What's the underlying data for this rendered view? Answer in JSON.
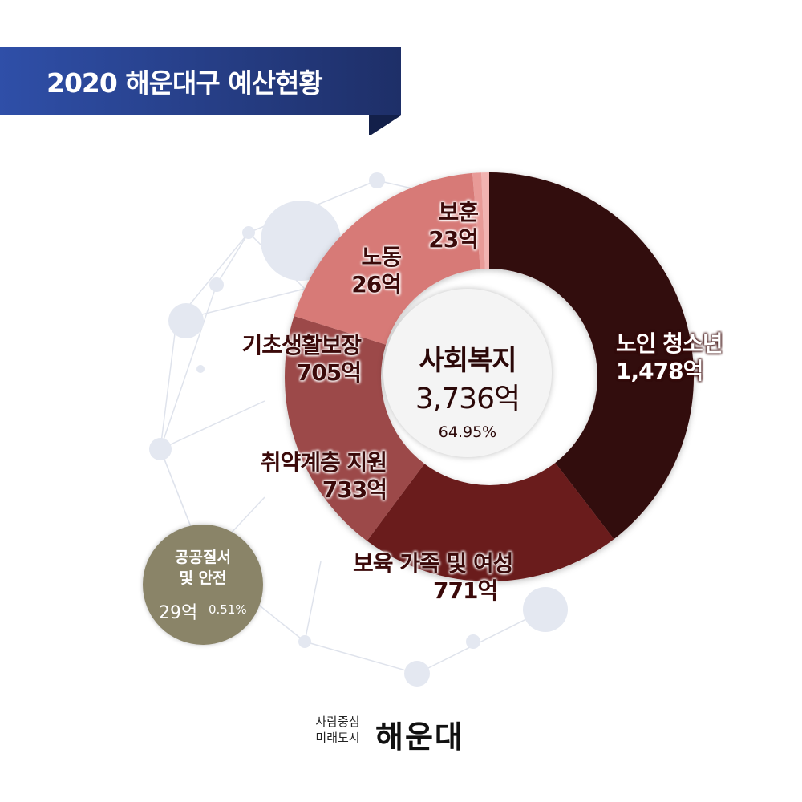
{
  "header": {
    "title": "2020 해운대구 예산현황"
  },
  "colors": {
    "banner_blue": "#2f4fa8",
    "banner_navy": "#1b2a5e",
    "side_circle": "#8a8468"
  },
  "chart_data": {
    "type": "pie",
    "style": "donut",
    "title": "사회복지",
    "center": {
      "title": "사회복지",
      "value": "3,736억",
      "percent": "64.95%"
    },
    "unit": "억",
    "slices": [
      {
        "name": "노인 청소년",
        "value": 1478,
        "label": "1,478억",
        "color": "#330707"
      },
      {
        "name": "보육 가족 및 여성",
        "value": 771,
        "label": "771억",
        "color": "#6b1c1c"
      },
      {
        "name": "취약계층 지원",
        "value": 733,
        "label": "733억",
        "color": "#9c4a48"
      },
      {
        "name": "기초생활보장",
        "value": 705,
        "label": "705억",
        "color": "#d77a77"
      },
      {
        "name": "노동",
        "value": 26,
        "label": "26억",
        "color": "#e89a97"
      },
      {
        "name": "보훈",
        "value": 23,
        "label": "23억",
        "color": "#f1b3b1"
      }
    ],
    "extra": {
      "name_line1": "공공질서",
      "name_line2": "및 안전",
      "value": "29억",
      "percent": "0.51%"
    }
  },
  "footer": {
    "slogan_line1": "사람중심",
    "slogan_line2": "미래도시",
    "brand": "해운대"
  }
}
